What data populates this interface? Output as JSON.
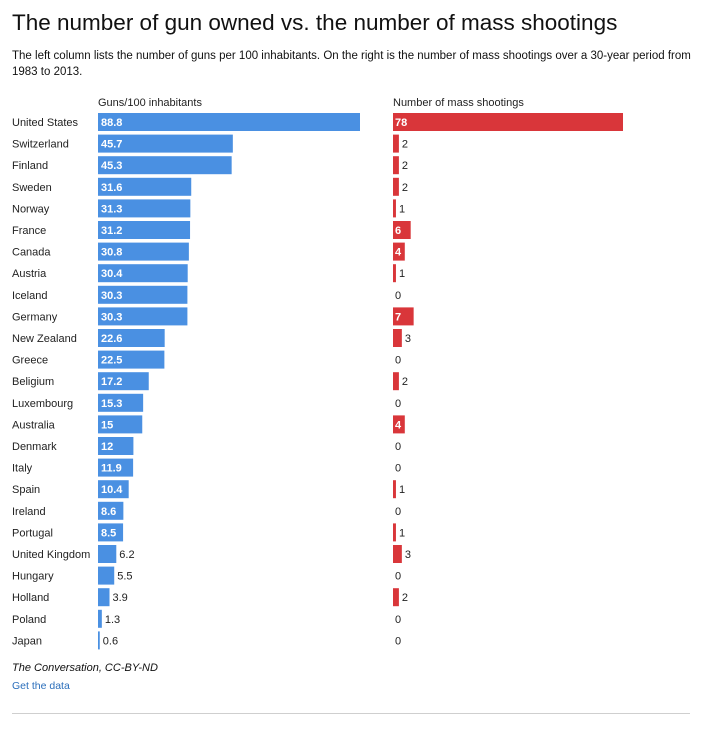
{
  "title": "The number of gun owned vs. the number of mass shootings",
  "subtitle": "The left column lists the number of guns per 100 inhabitants. On the right is the number of mass shootings over a 30-year period from 1983 to 2013.",
  "source": "The Conversation, CC-BY-ND",
  "get_data_label": "Get the data",
  "colors": {
    "guns": "#4a90e2",
    "shootings": "#d9363a",
    "label_dark": "#222222",
    "label_light": "#ffffff"
  },
  "chart_data": {
    "type": "bar",
    "orientation": "horizontal",
    "categories": [
      "United States",
      "Switzerland",
      "Finland",
      "Sweden",
      "Norway",
      "France",
      "Canada",
      "Austria",
      "Iceland",
      "Germany",
      "New Zealand",
      "Greece",
      "Beligium",
      "Luxembourg",
      "Australia",
      "Denmark",
      "Italy",
      "Spain",
      "Ireland",
      "Portugal",
      "United Kingdom",
      "Hungary",
      "Holland",
      "Poland",
      "Japan"
    ],
    "series": [
      {
        "name": "Guns/100 inhabitants",
        "values": [
          88.8,
          45.7,
          45.3,
          31.6,
          31.3,
          31.2,
          30.8,
          30.4,
          30.3,
          30.3,
          22.6,
          22.5,
          17.2,
          15.3,
          15,
          12,
          11.9,
          10.4,
          8.6,
          8.5,
          6.2,
          5.5,
          3.9,
          1.3,
          0.6
        ],
        "max": 88.8
      },
      {
        "name": "Number of mass shootings",
        "values": [
          78,
          2,
          2,
          2,
          1,
          6,
          4,
          1,
          0,
          7,
          3,
          0,
          2,
          0,
          4,
          0,
          0,
          1,
          0,
          1,
          3,
          0,
          2,
          0,
          0
        ],
        "max": 78
      }
    ]
  }
}
